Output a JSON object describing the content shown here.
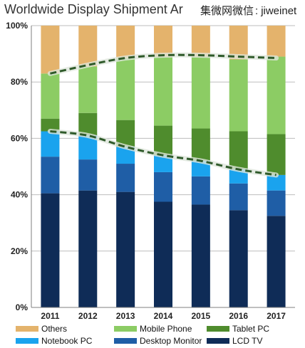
{
  "watermark": {
    "chinese": "集微网微信",
    "separator": ":",
    "handle": "jiweinet"
  },
  "chart_data": {
    "type": "bar",
    "stacked": true,
    "title": "Worldwide Display Shipment Ar",
    "categories": [
      "2011",
      "2012",
      "2013",
      "2014",
      "2015",
      "2016",
      "2017"
    ],
    "y_ticks": [
      "0%",
      "20%",
      "40%",
      "60%",
      "80%",
      "100%"
    ],
    "ylim": [
      0,
      100
    ],
    "series": [
      {
        "name": "LCD TV",
        "color": "#0f2c57",
        "values": [
          40.5,
          41.5,
          41,
          37.5,
          36.5,
          34.5,
          32.5
        ]
      },
      {
        "name": "Desktop Monitor",
        "color": "#1f5ea6",
        "values": [
          13,
          11,
          10,
          10.5,
          10,
          9.5,
          9
        ]
      },
      {
        "name": "Notebook PC",
        "color": "#1aa3ee",
        "values": [
          9,
          8.5,
          6,
          6,
          5.5,
          5,
          5.5
        ]
      },
      {
        "name": "Tablet PC",
        "color": "#4f8c2d",
        "values": [
          4.5,
          8,
          9.5,
          10.5,
          11.5,
          13.5,
          14.5
        ]
      },
      {
        "name": "Mobile Phone",
        "color": "#8ccc64",
        "values": [
          16,
          16.5,
          22,
          24.5,
          25.5,
          25.5,
          27.5
        ]
      },
      {
        "name": "Others",
        "color": "#e4b36c",
        "values": [
          17,
          14.5,
          11.5,
          11,
          11,
          12,
          11
        ]
      }
    ],
    "trend_lines": [
      {
        "values": [
          62.5,
          61,
          57,
          54,
          52,
          49,
          47
        ],
        "color": "#2f5a2a"
      },
      {
        "values": [
          83,
          86,
          88.5,
          89.5,
          89.5,
          89,
          88.5
        ],
        "color": "#2f5a2a"
      }
    ],
    "legend": {
      "position": "bottom",
      "order": [
        "Others",
        "Mobile Phone",
        "Tablet PC",
        "Notebook PC",
        "Desktop Monitor",
        "LCD TV"
      ]
    },
    "grid": true
  }
}
